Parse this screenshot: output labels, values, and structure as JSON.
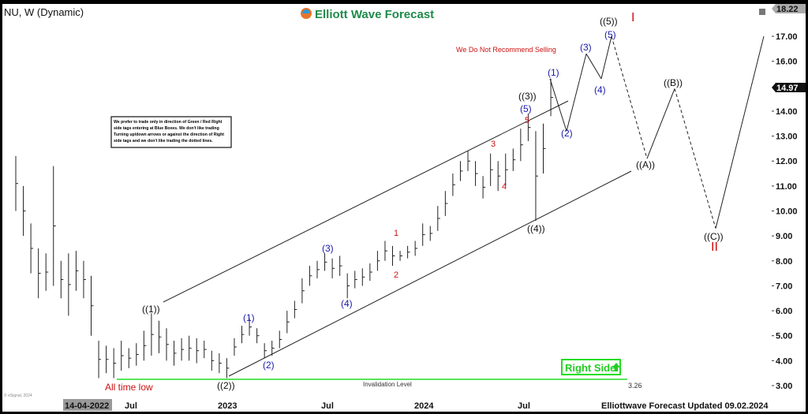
{
  "header": {
    "symbol_title": "NU, W (Dynamic)",
    "brand": "Elliott Wave Forecast"
  },
  "notice": {
    "lines": [
      "We prefer to trade only in direction of Green / Red Right",
      "side tags entering at Blue Boxes. We don't like trading",
      "Turning up/down arrows or against the direction of Right",
      "side tags and we don't like trading the dotted lines."
    ]
  },
  "annotations": {
    "warning": "We Do Not Recommend Selling",
    "all_time_low": "All time low",
    "invalidation": "Invalidation Level",
    "invalidation_value": "3.26",
    "right_side": "Right Side",
    "roman_top": "I",
    "roman_bottom": "II",
    "waves": {
      "w1": "((1))",
      "w2": "((2))",
      "w3": "((3))",
      "w4": "((4))",
      "w5": "((5))",
      "a": "((A))",
      "b": "((B))",
      "c": "((C))",
      "s1": "(1)",
      "s2": "(2)",
      "s3": "(3)",
      "s4": "(4)",
      "s5": "(5)",
      "p1": "(1)",
      "p2": "(2)",
      "p3": "(3)",
      "p4": "(4)",
      "p5": "(5)",
      "r1": "1",
      "r2": "2",
      "r3": "3",
      "r4": "4",
      "r5": "5"
    }
  },
  "footer": {
    "date_start": "14-04-2022",
    "updated": "Elliottwave Forecast Updated 09.02.2024",
    "copyright": "© eSignal, 2024"
  },
  "price_axis": {
    "last_high": "18.22",
    "current": "14.97"
  },
  "colors": {
    "blue": "#1a1aaa",
    "red": "#cc1111",
    "green": "#22dd22",
    "black": "#111111"
  },
  "chart_data": {
    "type": "bar",
    "title": "NU, W (Dynamic)",
    "ylim": [
      2.7,
      18.5
    ],
    "yticks": [
      "3.00",
      "4.00",
      "5.00",
      "6.00",
      "7.00",
      "8.00",
      "9.00",
      "10.00",
      "11.00",
      "12.00",
      "13.00",
      "14.00",
      "16.00",
      "17.00"
    ],
    "xticks": [
      "14-04-2022",
      "Jul",
      "2023",
      "Jul",
      "2024",
      "Jul"
    ],
    "ohlc_low_high_weekly": [
      [
        10,
        12.2
      ],
      [
        9,
        11
      ],
      [
        7.5,
        9.5
      ],
      [
        6.5,
        8.5
      ],
      [
        6.8,
        8.3
      ],
      [
        7,
        11.8
      ],
      [
        6.5,
        8
      ],
      [
        5.8,
        8.3
      ],
      [
        6.8,
        8.4
      ],
      [
        6.5,
        8
      ],
      [
        5,
        7.4
      ],
      [
        3.3,
        4.8
      ],
      [
        3.5,
        4.6
      ],
      [
        3.3,
        4.5
      ],
      [
        3.6,
        4.8
      ],
      [
        3.7,
        4.5
      ],
      [
        3.8,
        4.7
      ],
      [
        4,
        5.2
      ],
      [
        4.2,
        5.9
      ],
      [
        4.3,
        5.6
      ],
      [
        4,
        5.3
      ],
      [
        3.8,
        4.8
      ],
      [
        4,
        4.9
      ],
      [
        4,
        5
      ],
      [
        3.9,
        4.9
      ],
      [
        4.1,
        4.8
      ],
      [
        3.6,
        4.4
      ],
      [
        3.5,
        4.3
      ],
      [
        3.3,
        4.1
      ],
      [
        4.2,
        4.9
      ],
      [
        4.7,
        5.4
      ],
      [
        5,
        5.7
      ],
      [
        4.7,
        5.3
      ],
      [
        4.1,
        4.7
      ],
      [
        4.2,
        4.8
      ],
      [
        4.5,
        5.2
      ],
      [
        5.1,
        6
      ],
      [
        5.7,
        6.4
      ],
      [
        6.3,
        7.3
      ],
      [
        7,
        7.8
      ],
      [
        7.3,
        8
      ],
      [
        7.6,
        8.3
      ],
      [
        7.3,
        8.1
      ],
      [
        7.4,
        8.2
      ],
      [
        6.5,
        7.5
      ],
      [
        6.9,
        7.6
      ],
      [
        7,
        7.7
      ],
      [
        7.2,
        7.9
      ],
      [
        7.6,
        8.4
      ],
      [
        8,
        8.8
      ],
      [
        7.8,
        8.6
      ],
      [
        8,
        8.4
      ],
      [
        8.1,
        8.6
      ],
      [
        8.2,
        8.8
      ],
      [
        8.6,
        9.5
      ],
      [
        8.8,
        9.4
      ],
      [
        9.2,
        10.2
      ],
      [
        9.8,
        10.8
      ],
      [
        10.6,
        11.5
      ],
      [
        11.2,
        12
      ],
      [
        11.6,
        12.4
      ],
      [
        11,
        12
      ],
      [
        10.5,
        11.4
      ],
      [
        11,
        12.3
      ],
      [
        10.8,
        12
      ],
      [
        11,
        12.3
      ],
      [
        11.6,
        12.5
      ],
      [
        12,
        13.3
      ],
      [
        12.8,
        13.9
      ],
      [
        9.6,
        13.2
      ],
      [
        11.5,
        13.5
      ],
      [
        13.8,
        15.3
      ]
    ],
    "projection": [
      {
        "label": "(1)",
        "price": 15.3
      },
      {
        "label": "(2)",
        "price": 13.2
      },
      {
        "label": "(3)",
        "price": 16.3
      },
      {
        "label": "(4)",
        "price": 15.3
      },
      {
        "label": "((5))",
        "price": 17.0
      },
      {
        "label": "((A))",
        "price": 12.1
      },
      {
        "label": "((B))",
        "price": 14.9
      },
      {
        "label": "((C))",
        "price": 9.3
      },
      {
        "label": "end",
        "price": 17.0
      }
    ],
    "invalidation_level": 3.26,
    "last_price": 14.97
  }
}
